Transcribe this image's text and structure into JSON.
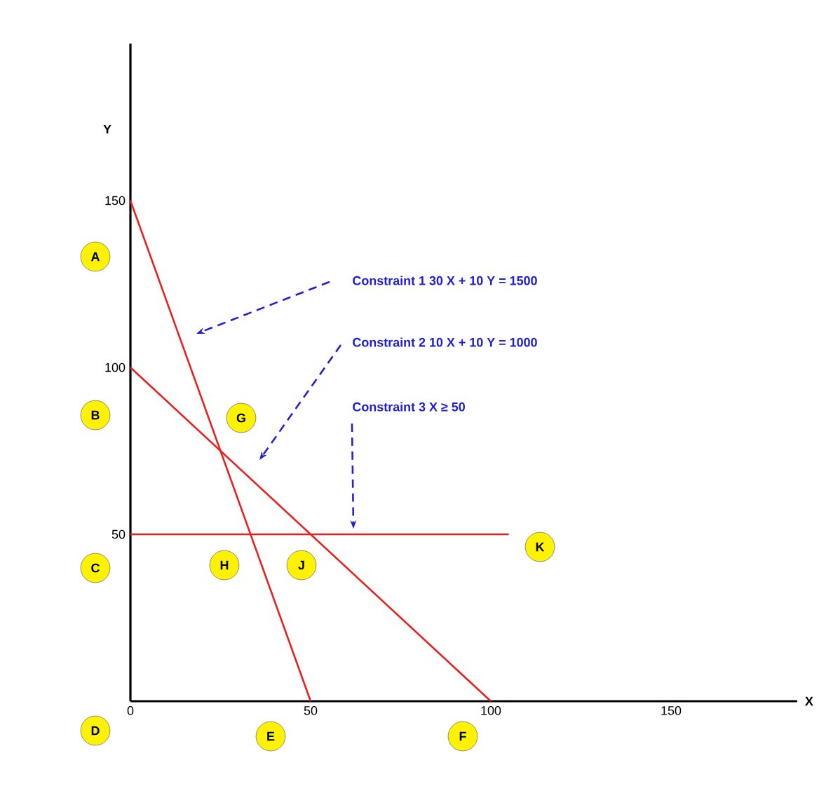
{
  "chart_data": {
    "type": "line",
    "xlabel": "X",
    "ylabel": "Y",
    "xlim": [
      0,
      185
    ],
    "ylim": [
      0,
      197
    ],
    "xticks": [
      0,
      50,
      100,
      150
    ],
    "yticks": [
      50,
      100,
      150
    ],
    "marker": "none",
    "line_style": "solid",
    "grid": false,
    "series": [
      {
        "color": "#e8201e",
        "x": [
          0,
          50
        ],
        "values": [
          150,
          0
        ]
      },
      {
        "color": "#e8201e",
        "x": [
          0,
          100
        ],
        "values": [
          100,
          0
        ]
      },
      {
        "color": "#e8201e",
        "x": [
          0,
          105
        ],
        "values": [
          50,
          50
        ]
      }
    ],
    "annotations": [
      "Constraint 1    30 X + 10 Y = 1500",
      "Constraint 2    10 X + 10 Y = 1000",
      "Constraint 3    X ≥ 50",
      "A",
      "B",
      "C",
      "D",
      "E",
      "F",
      "G",
      "H",
      "J",
      "K"
    ]
  }
}
